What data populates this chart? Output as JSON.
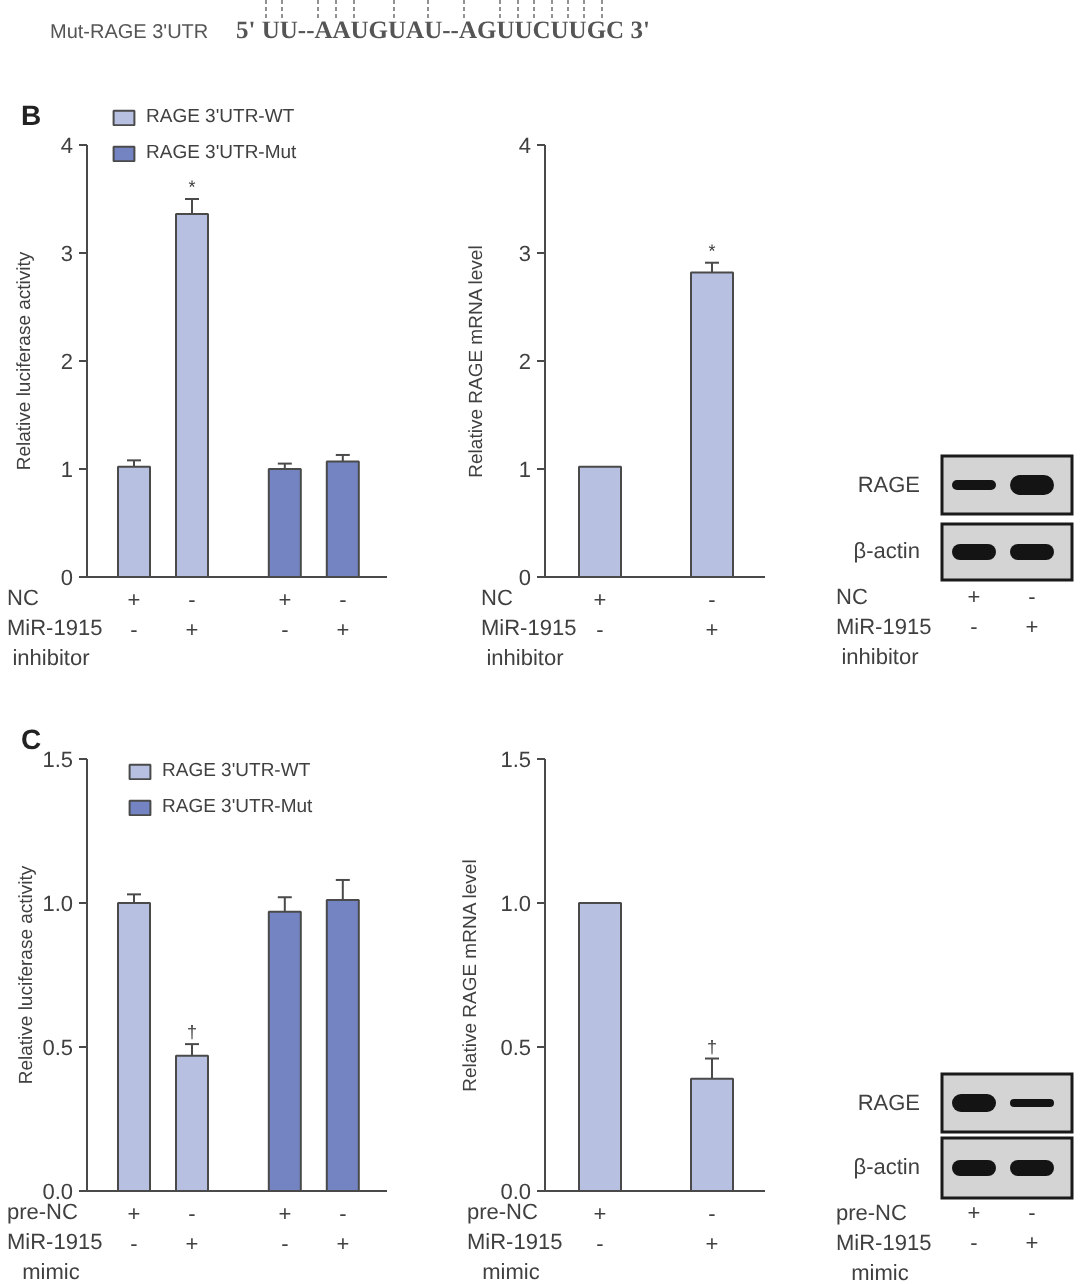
{
  "chart_data": [
    {
      "type": "other",
      "annotations": [
        "Mut-RAGE 3'UTR",
        "5' UU--AAUGUAU--AGUUCUUGC 3'"
      ]
    },
    {
      "type": "bar",
      "title": "B",
      "ylabel": "Relative luciferase activity",
      "xlabel": "NC\nMiR-1915\ninhibitor",
      "categories": [
        "+\n-",
        "-\n+",
        "+\n-",
        "-\n+"
      ],
      "series": [
        {
          "name": "RAGE 3'UTR-WT",
          "color": "#b8c0e2",
          "values": [
            1.02,
            3.36,
            null,
            null
          ],
          "errors": [
            0.06,
            0.14,
            null,
            null
          ],
          "value_labels": [
            null,
            "*",
            null,
            null
          ]
        },
        {
          "name": "RAGE 3'UTR-Mut",
          "color": "#7484c3",
          "values": [
            null,
            null,
            1.0,
            1.07
          ],
          "errors": [
            null,
            null,
            0.05,
            0.06
          ]
        }
      ],
      "ylim": [
        0,
        4
      ],
      "yticks": [
        0,
        1,
        2,
        3,
        4
      ],
      "legend": "top left"
    },
    {
      "type": "bar",
      "ylabel": "Relative RAGE mRNA level",
      "xlabel": "NC\nMiR-1915\ninhibitor",
      "categories": [
        "+\n-",
        "-\n+"
      ],
      "series": [
        {
          "color": "#b8c0e2",
          "values": [
            1.02,
            2.82
          ],
          "errors": [
            null,
            0.09
          ],
          "value_labels": [
            null,
            "*"
          ]
        }
      ],
      "ylim": [
        0,
        4
      ],
      "yticks": [
        0,
        1,
        2,
        3,
        4
      ]
    },
    {
      "type": "other",
      "y_categories": [
        "RAGE",
        "β-actin"
      ],
      "categories": [
        "+\n-",
        "-\n+"
      ],
      "xlabel": "NC\nMiR-1915\ninhibitor"
    },
    {
      "type": "bar",
      "title": "C",
      "ylabel": "Relative luciferase activity",
      "xlabel": "pre-NC\nMiR-1915\nmimic",
      "categories": [
        "+\n-",
        "-\n+",
        "+\n-",
        "-\n+"
      ],
      "series": [
        {
          "name": "RAGE 3'UTR-WT",
          "color": "#b8c0e2",
          "values": [
            1.0,
            0.47,
            null,
            null
          ],
          "errors": [
            0.03,
            0.04,
            null,
            null
          ],
          "value_labels": [
            null,
            "†",
            null,
            null
          ]
        },
        {
          "name": "RAGE 3'UTR-Mut",
          "color": "#7484c3",
          "values": [
            null,
            null,
            0.97,
            1.01
          ],
          "errors": [
            null,
            null,
            0.05,
            0.07
          ]
        }
      ],
      "ylim": [
        0,
        1.5
      ],
      "yticks": [
        {
          "value": 0,
          "label": "0.0"
        },
        {
          "value": 0.5,
          "label": "0.5"
        },
        {
          "value": 1,
          "label": "1.0"
        },
        {
          "value": 1.5,
          "label": "1.5"
        }
      ],
      "legend": "top left"
    },
    {
      "type": "bar",
      "ylabel": "Relative RAGE mRNA level",
      "xlabel": "pre-NC\nMiR-1915\nmimic",
      "categories": [
        "+\n-",
        "-\n+"
      ],
      "series": [
        {
          "color": "#b8c0e2",
          "values": [
            1.0,
            0.39
          ],
          "errors": [
            null,
            0.07
          ],
          "value_labels": [
            null,
            "†"
          ]
        }
      ],
      "ylim": [
        0,
        1.5
      ],
      "yticks": [
        {
          "value": 0,
          "label": "0.0"
        },
        {
          "value": 0.5,
          "label": "0.5"
        },
        {
          "value": 1,
          "label": "1.0"
        },
        {
          "value": 1.5,
          "label": "1.5"
        }
      ]
    },
    {
      "type": "other",
      "y_categories": [
        "RAGE",
        "β-actin"
      ],
      "categories": [
        "+\n-",
        "-\n+"
      ],
      "xlabel": "pre-NC\nMiR-1915\nmimic"
    }
  ]
}
